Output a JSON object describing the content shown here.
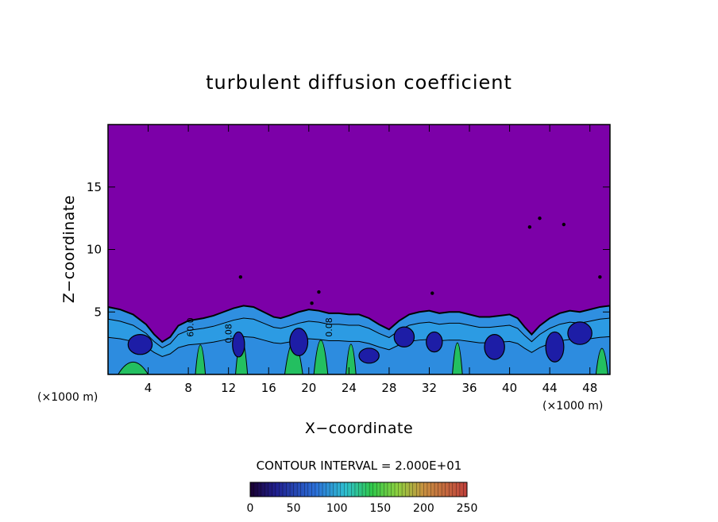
{
  "chart_data": {
    "type": "heatmap",
    "title": "turbulent diffusion coefficient",
    "xlabel": "X−coordinate",
    "ylabel": "Z−coordinate",
    "x_unit_left": "(×1000 m)",
    "x_unit_right": "(×1000 m)",
    "x_ticks": [
      4,
      8,
      12,
      16,
      20,
      24,
      28,
      32,
      36,
      40,
      44,
      48
    ],
    "y_ticks": [
      5,
      10,
      15
    ],
    "xlim": [
      0,
      50
    ],
    "ylim": [
      0,
      20
    ],
    "contour_interval_label": "CONTOUR INTERVAL = 2.000E+01",
    "colorbar_ticks": [
      0,
      50,
      100,
      150,
      200,
      250
    ],
    "colorbar_range": [
      0,
      250
    ],
    "contour_labels": [
      {
        "text": "60.0",
        "x": 8.5,
        "y": 3.0
      },
      {
        "text": "0.08",
        "x": 12.3,
        "y": 2.5
      },
      {
        "text": "0.08",
        "x": 22.3,
        "y": 3.0
      }
    ],
    "turbulent_layer_top": [
      [
        0,
        5.4
      ],
      [
        1.2,
        5.2
      ],
      [
        2.5,
        4.8
      ],
      [
        3.8,
        4.0
      ],
      [
        4.6,
        3.2
      ],
      [
        5.4,
        2.6
      ],
      [
        6.2,
        3.0
      ],
      [
        7.0,
        3.9
      ],
      [
        8.0,
        4.3
      ],
      [
        9.5,
        4.5
      ],
      [
        10.5,
        4.7
      ],
      [
        11.5,
        5.0
      ],
      [
        12.5,
        5.3
      ],
      [
        13.5,
        5.5
      ],
      [
        14.5,
        5.4
      ],
      [
        15.5,
        5.0
      ],
      [
        16.5,
        4.6
      ],
      [
        17.2,
        4.5
      ],
      [
        18.0,
        4.7
      ],
      [
        19.0,
        5.0
      ],
      [
        20.0,
        5.2
      ],
      [
        21.0,
        5.1
      ],
      [
        22.0,
        4.9
      ],
      [
        23.0,
        4.9
      ],
      [
        24.0,
        4.8
      ],
      [
        25.0,
        4.8
      ],
      [
        26.0,
        4.5
      ],
      [
        27.0,
        4.0
      ],
      [
        28.0,
        3.6
      ],
      [
        29.0,
        4.3
      ],
      [
        30.0,
        4.8
      ],
      [
        31.0,
        5.0
      ],
      [
        32.0,
        5.1
      ],
      [
        33.0,
        4.9
      ],
      [
        34.0,
        5.0
      ],
      [
        35.0,
        5.0
      ],
      [
        36.0,
        4.8
      ],
      [
        37.0,
        4.6
      ],
      [
        38.0,
        4.6
      ],
      [
        39.0,
        4.7
      ],
      [
        40.0,
        4.8
      ],
      [
        40.8,
        4.5
      ],
      [
        41.5,
        3.8
      ],
      [
        42.2,
        3.2
      ],
      [
        43.0,
        3.9
      ],
      [
        44.0,
        4.5
      ],
      [
        45.0,
        4.9
      ],
      [
        46.0,
        5.1
      ],
      [
        47.0,
        5.0
      ],
      [
        48.0,
        5.2
      ],
      [
        49.0,
        5.4
      ],
      [
        50.0,
        5.5
      ]
    ],
    "colors": {
      "background_value": "#7c00a8",
      "low": "#1d1da6",
      "mid": "#2f8fe0",
      "high": "#22c84a",
      "outline": "#000000"
    }
  }
}
